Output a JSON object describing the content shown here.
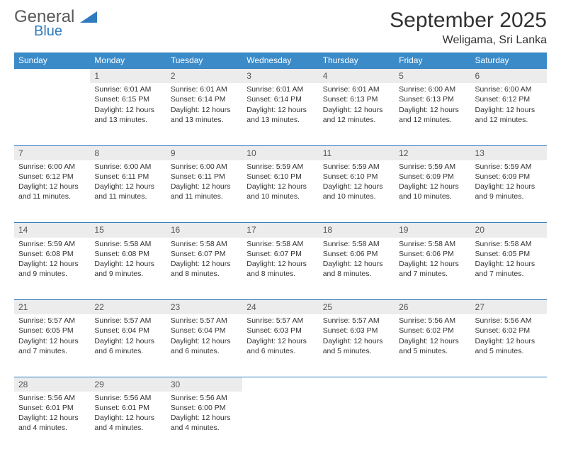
{
  "logo": {
    "word1": "General",
    "word2": "Blue"
  },
  "title": "September 2025",
  "location": "Weligama, Sri Lanka",
  "colors": {
    "header_bg": "#3b8bc9",
    "header_text": "#ffffff",
    "rule": "#2f7bbf",
    "daynum_bg": "#ececec",
    "logo_gray": "#595959",
    "logo_blue": "#2f7bbf",
    "title_color": "#323232",
    "body_text": "#333333",
    "page_bg": "#ffffff"
  },
  "typography": {
    "title_fontsize": 30,
    "location_fontsize": 16,
    "dayhead_fontsize": 12,
    "daynum_fontsize": 12,
    "cell_fontsize": 10.5,
    "font_family": "Arial"
  },
  "day_headers": [
    "Sunday",
    "Monday",
    "Tuesday",
    "Wednesday",
    "Thursday",
    "Friday",
    "Saturday"
  ],
  "labels": {
    "sunrise": "Sunrise:",
    "sunset": "Sunset:",
    "daylight": "Daylight:"
  },
  "weeks": [
    [
      null,
      {
        "n": "1",
        "sr": "6:01 AM",
        "ss": "6:15 PM",
        "dl": "12 hours and 13 minutes."
      },
      {
        "n": "2",
        "sr": "6:01 AM",
        "ss": "6:14 PM",
        "dl": "12 hours and 13 minutes."
      },
      {
        "n": "3",
        "sr": "6:01 AM",
        "ss": "6:14 PM",
        "dl": "12 hours and 13 minutes."
      },
      {
        "n": "4",
        "sr": "6:01 AM",
        "ss": "6:13 PM",
        "dl": "12 hours and 12 minutes."
      },
      {
        "n": "5",
        "sr": "6:00 AM",
        "ss": "6:13 PM",
        "dl": "12 hours and 12 minutes."
      },
      {
        "n": "6",
        "sr": "6:00 AM",
        "ss": "6:12 PM",
        "dl": "12 hours and 12 minutes."
      }
    ],
    [
      {
        "n": "7",
        "sr": "6:00 AM",
        "ss": "6:12 PM",
        "dl": "12 hours and 11 minutes."
      },
      {
        "n": "8",
        "sr": "6:00 AM",
        "ss": "6:11 PM",
        "dl": "12 hours and 11 minutes."
      },
      {
        "n": "9",
        "sr": "6:00 AM",
        "ss": "6:11 PM",
        "dl": "12 hours and 11 minutes."
      },
      {
        "n": "10",
        "sr": "5:59 AM",
        "ss": "6:10 PM",
        "dl": "12 hours and 10 minutes."
      },
      {
        "n": "11",
        "sr": "5:59 AM",
        "ss": "6:10 PM",
        "dl": "12 hours and 10 minutes."
      },
      {
        "n": "12",
        "sr": "5:59 AM",
        "ss": "6:09 PM",
        "dl": "12 hours and 10 minutes."
      },
      {
        "n": "13",
        "sr": "5:59 AM",
        "ss": "6:09 PM",
        "dl": "12 hours and 9 minutes."
      }
    ],
    [
      {
        "n": "14",
        "sr": "5:59 AM",
        "ss": "6:08 PM",
        "dl": "12 hours and 9 minutes."
      },
      {
        "n": "15",
        "sr": "5:58 AM",
        "ss": "6:08 PM",
        "dl": "12 hours and 9 minutes."
      },
      {
        "n": "16",
        "sr": "5:58 AM",
        "ss": "6:07 PM",
        "dl": "12 hours and 8 minutes."
      },
      {
        "n": "17",
        "sr": "5:58 AM",
        "ss": "6:07 PM",
        "dl": "12 hours and 8 minutes."
      },
      {
        "n": "18",
        "sr": "5:58 AM",
        "ss": "6:06 PM",
        "dl": "12 hours and 8 minutes."
      },
      {
        "n": "19",
        "sr": "5:58 AM",
        "ss": "6:06 PM",
        "dl": "12 hours and 7 minutes."
      },
      {
        "n": "20",
        "sr": "5:58 AM",
        "ss": "6:05 PM",
        "dl": "12 hours and 7 minutes."
      }
    ],
    [
      {
        "n": "21",
        "sr": "5:57 AM",
        "ss": "6:05 PM",
        "dl": "12 hours and 7 minutes."
      },
      {
        "n": "22",
        "sr": "5:57 AM",
        "ss": "6:04 PM",
        "dl": "12 hours and 6 minutes."
      },
      {
        "n": "23",
        "sr": "5:57 AM",
        "ss": "6:04 PM",
        "dl": "12 hours and 6 minutes."
      },
      {
        "n": "24",
        "sr": "5:57 AM",
        "ss": "6:03 PM",
        "dl": "12 hours and 6 minutes."
      },
      {
        "n": "25",
        "sr": "5:57 AM",
        "ss": "6:03 PM",
        "dl": "12 hours and 5 minutes."
      },
      {
        "n": "26",
        "sr": "5:56 AM",
        "ss": "6:02 PM",
        "dl": "12 hours and 5 minutes."
      },
      {
        "n": "27",
        "sr": "5:56 AM",
        "ss": "6:02 PM",
        "dl": "12 hours and 5 minutes."
      }
    ],
    [
      {
        "n": "28",
        "sr": "5:56 AM",
        "ss": "6:01 PM",
        "dl": "12 hours and 4 minutes."
      },
      {
        "n": "29",
        "sr": "5:56 AM",
        "ss": "6:01 PM",
        "dl": "12 hours and 4 minutes."
      },
      {
        "n": "30",
        "sr": "5:56 AM",
        "ss": "6:00 PM",
        "dl": "12 hours and 4 minutes."
      },
      null,
      null,
      null,
      null
    ]
  ]
}
